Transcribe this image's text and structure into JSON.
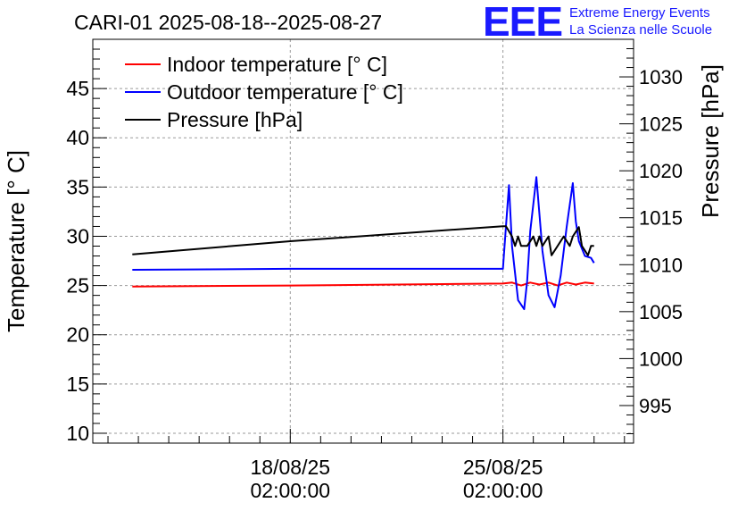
{
  "logo": {
    "mark": "EEE",
    "line1": "Extreme Energy Events",
    "line2": "La Scienza nelle Scuole",
    "color": "#1a1aff"
  },
  "chart_data": {
    "type": "line",
    "title": "CARI-01 2025-08-18--2025-08-27",
    "ylabel": "Temperature [° C]",
    "y2label": "Pressure [hPa]",
    "ylim": [
      9,
      50
    ],
    "y2lim": [
      991,
      1034
    ],
    "yticks": [
      "10",
      "15",
      "20",
      "25",
      "30",
      "35",
      "40",
      "45"
    ],
    "y2ticks": [
      "995",
      "1000",
      "1005",
      "1010",
      "1015",
      "1020",
      "1025",
      "1030"
    ],
    "xticks": [
      {
        "day": 0.0,
        "line1": "18/08/25",
        "line2": "02:00:00"
      },
      {
        "day": 7.0,
        "line1": "25/08/25",
        "line2": "02:00:00"
      }
    ],
    "xlim": [
      -6.5,
      11.3
    ],
    "grid": true,
    "legend_position": "top-left",
    "series": [
      {
        "name": "Indoor temperature [° C]",
        "color": "#ff0000",
        "axis": "left",
        "x": [
          -5.2,
          0.0,
          7.0,
          7.3,
          7.6,
          7.9,
          8.2,
          8.5,
          8.8,
          9.1,
          9.4,
          9.7,
          10.0
        ],
        "y": [
          24.9,
          25.0,
          25.2,
          25.3,
          25.0,
          25.3,
          25.1,
          25.3,
          25.0,
          25.3,
          25.1,
          25.3,
          25.2
        ]
      },
      {
        "name": "Outdoor temperature [° C]",
        "color": "#0000ff",
        "axis": "left",
        "x": [
          -5.2,
          0.0,
          7.0,
          7.1,
          7.2,
          7.3,
          7.5,
          7.7,
          7.8,
          7.9,
          8.1,
          8.3,
          8.5,
          8.7,
          8.9,
          9.1,
          9.3,
          9.4,
          9.5,
          9.7,
          9.9,
          10.0
        ],
        "y": [
          26.6,
          26.7,
          26.7,
          31.0,
          35.2,
          29.0,
          23.5,
          22.6,
          25.5,
          30.5,
          36.0,
          28.5,
          24.0,
          22.8,
          26.0,
          31.0,
          35.4,
          31.5,
          29.5,
          28.0,
          27.8,
          27.3
        ]
      },
      {
        "name": "Pressure [hPa]",
        "color": "#000000",
        "axis": "right",
        "x": [
          -5.2,
          0.0,
          7.0,
          7.1,
          7.3,
          7.4,
          7.5,
          7.6,
          7.8,
          8.0,
          8.1,
          8.2,
          8.3,
          8.5,
          8.6,
          8.8,
          9.0,
          9.2,
          9.3,
          9.5,
          9.6,
          9.8,
          9.9,
          10.0
        ],
        "y": [
          1011.1,
          1012.5,
          1014.1,
          1014.1,
          1013.0,
          1012.0,
          1013.0,
          1012.0,
          1012.0,
          1013.0,
          1012.0,
          1013.0,
          1012.0,
          1013.0,
          1011.0,
          1012.0,
          1013.0,
          1012.0,
          1013.0,
          1014.0,
          1012.0,
          1011.0,
          1012.0,
          1012.0
        ]
      }
    ]
  }
}
